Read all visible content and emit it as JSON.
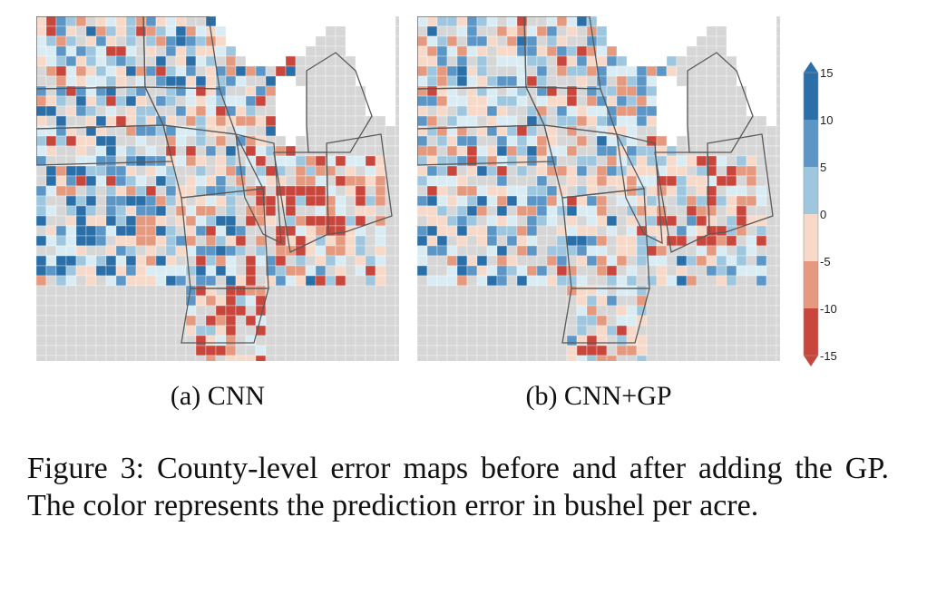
{
  "figure": {
    "caption": "Figure 3: County-level error maps before and after adding the GP. The color represents the prediction error in bushel per acre.",
    "panels": [
      {
        "id": "a",
        "label": "(a) CNN",
        "seed": 11,
        "intensity": 1.0
      },
      {
        "id": "b",
        "label": "(b) CNN+GP",
        "seed": 47,
        "intensity": 0.72
      }
    ]
  },
  "colorbar": {
    "ticks": [
      "15",
      "10",
      "5",
      "0",
      "-5",
      "-10",
      "-15"
    ],
    "colors": [
      "#2b6fa8",
      "#5b96c6",
      "#9ec7df",
      "#d9ecf4",
      "#f7d9c9",
      "#e59a80",
      "#c9463d"
    ],
    "no_data_color": "#d6d6d6",
    "border_color": "#5a5a5a"
  }
}
